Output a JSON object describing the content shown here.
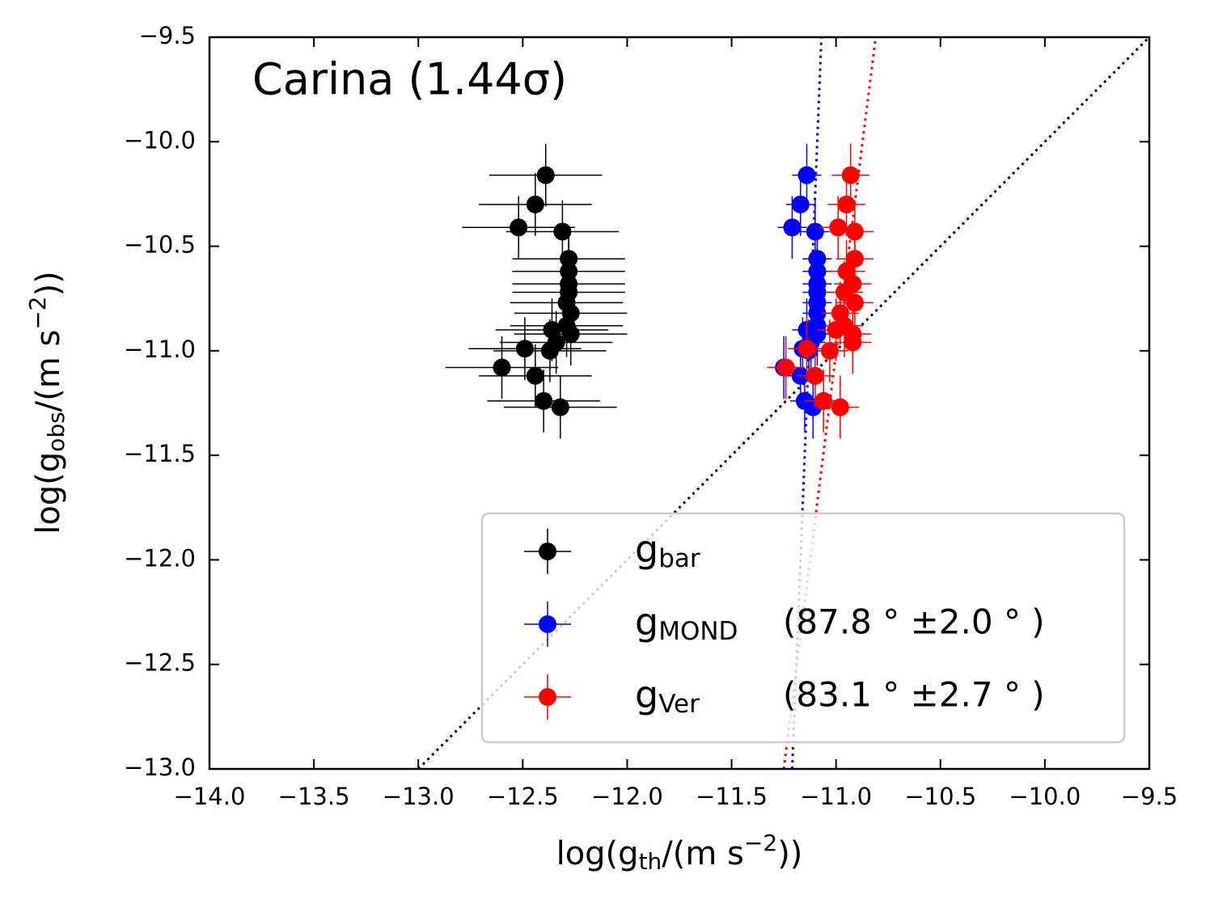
{
  "chart_data": {
    "type": "scatter",
    "annotation": "Carina (1.44σ)",
    "xlabel": {
      "pre": "log(g",
      "sub": "th",
      "mid": "/(m s",
      "sup": "−2",
      "post": "))"
    },
    "ylabel": {
      "pre": "log(g",
      "sub": "obs",
      "mid": "/(m s",
      "sup": "−2",
      "post": "))"
    },
    "xlim": [
      -14,
      -9.5
    ],
    "ylim": [
      -13,
      -9.5
    ],
    "xticks": [
      {
        "value": -14,
        "label": "−14.0"
      },
      {
        "value": -13.5,
        "label": "−13.5"
      },
      {
        "value": -13,
        "label": "−13.0"
      },
      {
        "value": -12.5,
        "label": "−12.5"
      },
      {
        "value": -12,
        "label": "−12.0"
      },
      {
        "value": -11.5,
        "label": "−11.5"
      },
      {
        "value": -11,
        "label": "−11.0"
      },
      {
        "value": -10.5,
        "label": "−10.5"
      },
      {
        "value": -10,
        "label": "−10.0"
      },
      {
        "value": -9.5,
        "label": "−9.5"
      }
    ],
    "yticks": [
      {
        "value": -13,
        "label": "−13.0"
      },
      {
        "value": -12.5,
        "label": "−12.5"
      },
      {
        "value": -12,
        "label": "−12.0"
      },
      {
        "value": -11.5,
        "label": "−11.5"
      },
      {
        "value": -11,
        "label": "−11.0"
      },
      {
        "value": -10.5,
        "label": "−10.5"
      },
      {
        "value": -10,
        "label": "−10.0"
      },
      {
        "value": -9.5,
        "label": "−9.5"
      }
    ],
    "legend": "lower right",
    "series": [
      {
        "name": "g",
        "name_sub": "bar",
        "color": "#000000",
        "xerr": 0.27,
        "yerr": 0.15,
        "x": [
          -12.39,
          -12.44,
          -12.52,
          -12.31,
          -12.28,
          -12.28,
          -12.28,
          -12.28,
          -12.29,
          -12.27,
          -12.29,
          -12.36,
          -12.27,
          -12.34,
          -12.37,
          -12.49,
          -12.6,
          -12.44,
          -12.4,
          -12.32
        ],
        "y": [
          -10.16,
          -10.3,
          -10.41,
          -10.43,
          -10.56,
          -10.62,
          -10.68,
          -10.72,
          -10.77,
          -10.82,
          -10.88,
          -10.9,
          -10.92,
          -10.96,
          -11.0,
          -10.99,
          -11.08,
          -11.12,
          -11.24,
          -11.27
        ]
      },
      {
        "name": "g",
        "name_sub": "MOND",
        "note": "(87.8 ° ±2.0 ° )",
        "color": "#0000ff",
        "xerr": 0.07,
        "yerr": 0.15,
        "x": [
          -11.14,
          -11.17,
          -11.21,
          -11.1,
          -11.09,
          -11.09,
          -11.09,
          -11.09,
          -11.09,
          -11.09,
          -11.09,
          -11.14,
          -11.09,
          -11.12,
          -11.13,
          -11.16,
          -11.25,
          -11.17,
          -11.15,
          -11.11
        ],
        "y": [
          -10.16,
          -10.3,
          -10.41,
          -10.43,
          -10.56,
          -10.62,
          -10.68,
          -10.72,
          -10.77,
          -10.82,
          -10.88,
          -10.9,
          -10.92,
          -10.96,
          -11.0,
          -10.99,
          -11.08,
          -11.12,
          -11.24,
          -11.27
        ]
      },
      {
        "name": "g",
        "name_sub": "Ver",
        "note": "(83.1 ° ±2.7 ° )",
        "color": "#ff0000",
        "xerr": 0.09,
        "yerr": 0.15,
        "x": [
          -10.93,
          -10.95,
          -10.99,
          -10.91,
          -10.91,
          -10.95,
          -10.92,
          -10.96,
          -10.91,
          -10.98,
          -10.96,
          -11.0,
          -10.92,
          -10.92,
          -11.03,
          -11.14,
          -11.24,
          -11.1,
          -11.06,
          -10.98
        ],
        "y": [
          -10.16,
          -10.3,
          -10.41,
          -10.43,
          -10.56,
          -10.62,
          -10.68,
          -10.72,
          -10.77,
          -10.82,
          -10.88,
          -10.9,
          -10.92,
          -10.96,
          -11.0,
          -10.99,
          -11.08,
          -11.12,
          -11.24,
          -11.27
        ]
      }
    ],
    "lines": [
      {
        "color": "#000000",
        "x": [
          -13,
          -9.5
        ],
        "y": [
          -13,
          -9.5
        ]
      },
      {
        "color": "#0000ff",
        "x": [
          -11.21,
          -11.07
        ],
        "y": [
          -13,
          -9.5
        ]
      },
      {
        "color": "#ff0000",
        "x": [
          -11.25,
          -10.81
        ],
        "y": [
          -13,
          -9.5
        ]
      }
    ]
  }
}
